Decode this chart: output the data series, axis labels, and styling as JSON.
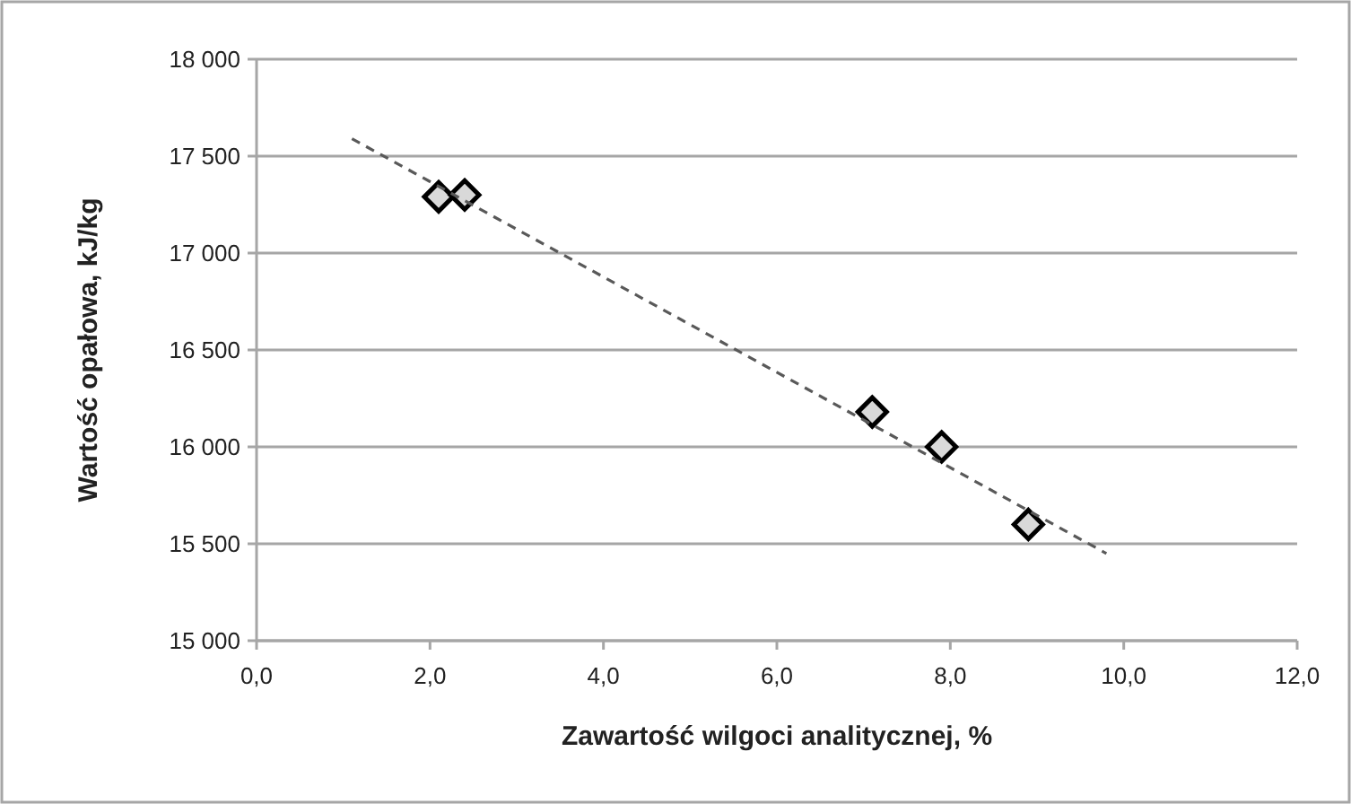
{
  "chart_data": {
    "type": "scatter",
    "xlabel": "Zawartość wilgoci analitycznej, %",
    "ylabel": "Wartość opałowa, kJ/kg",
    "xlim": [
      0,
      12
    ],
    "ylim": [
      15000,
      18000
    ],
    "xticks": [
      {
        "value": 0,
        "label": "0,0"
      },
      {
        "value": 2,
        "label": "2,0"
      },
      {
        "value": 4,
        "label": "4,0"
      },
      {
        "value": 6,
        "label": "6,0"
      },
      {
        "value": 8,
        "label": "8,0"
      },
      {
        "value": 10,
        "label": "10,0"
      },
      {
        "value": 12,
        "label": "12,0"
      }
    ],
    "yticks": [
      {
        "value": 15000,
        "label": "15 000"
      },
      {
        "value": 15500,
        "label": "15 500"
      },
      {
        "value": 16000,
        "label": "16 000"
      },
      {
        "value": 16500,
        "label": "16 500"
      },
      {
        "value": 17000,
        "label": "17 000"
      },
      {
        "value": 17500,
        "label": "17 500"
      },
      {
        "value": 18000,
        "label": "18 000"
      }
    ],
    "grid": "y",
    "series": [
      {
        "color": "#d9d9d9",
        "marker": "diamond",
        "x": [
          2.1,
          2.4,
          7.1,
          7.9,
          8.9
        ],
        "values": [
          17290,
          17300,
          16180,
          16000,
          15600
        ]
      },
      {
        "type": "line",
        "color": "#595959",
        "marker": "none",
        "line_style": "dashed",
        "x": [
          1.1,
          9.8
        ],
        "values": [
          17590,
          15450
        ]
      }
    ]
  }
}
